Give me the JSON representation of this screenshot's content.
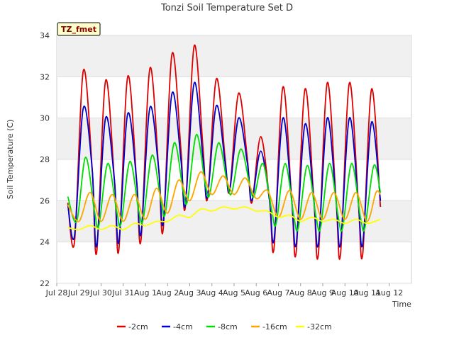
{
  "chart_data": {
    "type": "line",
    "title": "Tonzi Soil Temperature Set D",
    "xlabel": "Time",
    "ylabel": "Soil Temperature (C)",
    "annotation": "TZ_fmet",
    "ylim": [
      22,
      34
    ],
    "xlim": [
      0,
      16
    ],
    "y_ticks": [
      22,
      24,
      26,
      28,
      30,
      32,
      34
    ],
    "x_ticks": [
      {
        "x": 0,
        "label": "Jul 28"
      },
      {
        "x": 1,
        "label": "Jul 29"
      },
      {
        "x": 2,
        "label": "Jul 30"
      },
      {
        "x": 3,
        "label": "Jul 31"
      },
      {
        "x": 4,
        "label": "Aug 1"
      },
      {
        "x": 5,
        "label": "Aug 2"
      },
      {
        "x": 6,
        "label": "Aug 3"
      },
      {
        "x": 7,
        "label": "Aug 4"
      },
      {
        "x": 8,
        "label": "Aug 5"
      },
      {
        "x": 9,
        "label": "Aug 6"
      },
      {
        "x": 10,
        "label": "Aug 7"
      },
      {
        "x": 11,
        "label": "Aug 8"
      },
      {
        "x": 12,
        "label": "Aug 9"
      },
      {
        "x": 13,
        "label": "Aug 10"
      },
      {
        "x": 14,
        "label": "Aug 11"
      },
      {
        "x": 15,
        "label": "Aug 12"
      }
    ],
    "grid": true,
    "legend_position": "bottom",
    "series": [
      {
        "name": "-2cm",
        "color": "#dd0000",
        "points": [
          [
            0.5,
            25.9
          ],
          [
            0.8,
            24.0
          ],
          [
            1.2,
            32.3
          ],
          [
            1.6,
            27.5
          ],
          [
            1.8,
            23.5
          ],
          [
            2.2,
            31.8
          ],
          [
            2.6,
            27.0
          ],
          [
            2.8,
            23.6
          ],
          [
            3.2,
            32.0
          ],
          [
            3.6,
            27.0
          ],
          [
            3.8,
            24.1
          ],
          [
            4.2,
            32.4
          ],
          [
            4.6,
            27.5
          ],
          [
            4.8,
            24.6
          ],
          [
            5.2,
            33.1
          ],
          [
            5.6,
            28.5
          ],
          [
            5.8,
            25.7
          ],
          [
            6.2,
            33.5
          ],
          [
            6.6,
            28.5
          ],
          [
            6.8,
            26.1
          ],
          [
            7.2,
            31.9
          ],
          [
            7.6,
            28.0
          ],
          [
            7.8,
            26.5
          ],
          [
            8.2,
            31.2
          ],
          [
            8.6,
            28.0
          ],
          [
            8.8,
            25.9
          ],
          [
            9.2,
            29.1
          ],
          [
            9.6,
            26.0
          ],
          [
            9.8,
            23.7
          ],
          [
            10.2,
            31.5
          ],
          [
            10.6,
            26.0
          ],
          [
            10.8,
            23.5
          ],
          [
            11.2,
            31.4
          ],
          [
            11.6,
            26.0
          ],
          [
            11.8,
            23.4
          ],
          [
            12.2,
            31.7
          ],
          [
            12.6,
            26.0
          ],
          [
            12.8,
            23.4
          ],
          [
            13.2,
            31.7
          ],
          [
            13.6,
            26.0
          ],
          [
            13.8,
            23.4
          ],
          [
            14.2,
            31.4
          ],
          [
            14.6,
            25.7
          ]
        ]
      },
      {
        "name": "-4cm",
        "color": "#0000cc",
        "points": [
          [
            0.5,
            25.8
          ],
          [
            0.8,
            24.3
          ],
          [
            1.2,
            30.5
          ],
          [
            1.6,
            27.5
          ],
          [
            1.8,
            23.8
          ],
          [
            2.2,
            30.0
          ],
          [
            2.6,
            27.0
          ],
          [
            2.8,
            24.0
          ],
          [
            3.2,
            30.2
          ],
          [
            3.6,
            27.0
          ],
          [
            3.8,
            24.4
          ],
          [
            4.2,
            30.5
          ],
          [
            4.6,
            27.5
          ],
          [
            4.8,
            24.9
          ],
          [
            5.2,
            31.2
          ],
          [
            5.6,
            28.0
          ],
          [
            5.8,
            25.8
          ],
          [
            6.2,
            31.7
          ],
          [
            6.6,
            28.0
          ],
          [
            6.8,
            26.2
          ],
          [
            7.2,
            30.6
          ],
          [
            7.6,
            27.8
          ],
          [
            7.8,
            26.5
          ],
          [
            8.2,
            30.0
          ],
          [
            8.6,
            27.8
          ],
          [
            8.8,
            26.0
          ],
          [
            9.2,
            28.4
          ],
          [
            9.6,
            26.0
          ],
          [
            9.8,
            24.1
          ],
          [
            10.2,
            30.0
          ],
          [
            10.6,
            26.0
          ],
          [
            10.8,
            23.9
          ],
          [
            11.2,
            29.7
          ],
          [
            11.6,
            26.0
          ],
          [
            11.8,
            23.9
          ],
          [
            12.2,
            30.0
          ],
          [
            12.6,
            26.0
          ],
          [
            12.8,
            23.9
          ],
          [
            13.2,
            30.0
          ],
          [
            13.6,
            26.0
          ],
          [
            13.8,
            23.9
          ],
          [
            14.2,
            29.8
          ],
          [
            14.6,
            26.0
          ]
        ]
      },
      {
        "name": "-8cm",
        "color": "#00dd00",
        "points": [
          [
            0.5,
            26.2
          ],
          [
            0.9,
            25.0
          ],
          [
            1.3,
            28.1
          ],
          [
            1.7,
            25.5
          ],
          [
            1.9,
            24.8
          ],
          [
            2.3,
            27.8
          ],
          [
            2.7,
            25.5
          ],
          [
            2.9,
            24.9
          ],
          [
            3.3,
            27.9
          ],
          [
            3.7,
            25.5
          ],
          [
            3.9,
            25.1
          ],
          [
            4.3,
            28.2
          ],
          [
            4.7,
            26.0
          ],
          [
            4.9,
            25.4
          ],
          [
            5.3,
            28.8
          ],
          [
            5.7,
            26.5
          ],
          [
            5.9,
            26.0
          ],
          [
            6.3,
            29.2
          ],
          [
            6.7,
            26.8
          ],
          [
            6.9,
            26.3
          ],
          [
            7.3,
            28.8
          ],
          [
            7.7,
            26.8
          ],
          [
            7.9,
            26.4
          ],
          [
            8.3,
            28.5
          ],
          [
            8.7,
            26.8
          ],
          [
            8.9,
            26.2
          ],
          [
            9.3,
            27.8
          ],
          [
            9.7,
            25.5
          ],
          [
            9.9,
            24.9
          ],
          [
            10.3,
            27.8
          ],
          [
            10.7,
            25.2
          ],
          [
            10.9,
            24.7
          ],
          [
            11.3,
            27.7
          ],
          [
            11.7,
            25.2
          ],
          [
            11.9,
            24.7
          ],
          [
            12.3,
            27.8
          ],
          [
            12.7,
            25.2
          ],
          [
            12.9,
            24.7
          ],
          [
            13.3,
            27.8
          ],
          [
            13.7,
            25.2
          ],
          [
            13.9,
            24.7
          ],
          [
            14.3,
            27.7
          ],
          [
            14.6,
            26.4
          ]
        ]
      },
      {
        "name": "-16cm",
        "color": "#ffa500",
        "points": [
          [
            0.5,
            25.8
          ],
          [
            1.0,
            25.0
          ],
          [
            1.5,
            26.4
          ],
          [
            2.0,
            25.0
          ],
          [
            2.5,
            26.3
          ],
          [
            3.0,
            25.0
          ],
          [
            3.5,
            26.3
          ],
          [
            4.0,
            25.1
          ],
          [
            4.5,
            26.6
          ],
          [
            5.0,
            25.4
          ],
          [
            5.5,
            27.0
          ],
          [
            6.0,
            26.0
          ],
          [
            6.5,
            27.4
          ],
          [
            7.0,
            26.3
          ],
          [
            7.5,
            27.2
          ],
          [
            8.0,
            26.3
          ],
          [
            8.5,
            27.1
          ],
          [
            9.0,
            26.1
          ],
          [
            9.5,
            26.5
          ],
          [
            10.0,
            25.2
          ],
          [
            10.5,
            26.5
          ],
          [
            11.0,
            25.1
          ],
          [
            11.5,
            26.4
          ],
          [
            12.0,
            25.1
          ],
          [
            12.5,
            26.4
          ],
          [
            13.0,
            25.1
          ],
          [
            13.5,
            26.4
          ],
          [
            14.0,
            25.0
          ],
          [
            14.4,
            26.4
          ],
          [
            14.6,
            26.3
          ]
        ]
      },
      {
        "name": "-32cm",
        "color": "#ffff00",
        "points": [
          [
            0.5,
            24.7
          ],
          [
            1.0,
            24.6
          ],
          [
            1.5,
            24.8
          ],
          [
            2.0,
            24.6
          ],
          [
            2.5,
            24.8
          ],
          [
            3.0,
            24.6
          ],
          [
            3.5,
            24.9
          ],
          [
            4.0,
            24.8
          ],
          [
            4.5,
            25.0
          ],
          [
            5.0,
            25.0
          ],
          [
            5.5,
            25.3
          ],
          [
            6.0,
            25.2
          ],
          [
            6.5,
            25.6
          ],
          [
            7.0,
            25.5
          ],
          [
            7.5,
            25.7
          ],
          [
            8.0,
            25.6
          ],
          [
            8.5,
            25.7
          ],
          [
            9.0,
            25.5
          ],
          [
            9.5,
            25.5
          ],
          [
            10.0,
            25.2
          ],
          [
            10.5,
            25.3
          ],
          [
            11.0,
            25.0
          ],
          [
            11.5,
            25.2
          ],
          [
            12.0,
            25.0
          ],
          [
            12.5,
            25.1
          ],
          [
            13.0,
            24.9
          ],
          [
            13.5,
            25.1
          ],
          [
            14.0,
            24.9
          ],
          [
            14.6,
            25.1
          ]
        ]
      }
    ]
  }
}
